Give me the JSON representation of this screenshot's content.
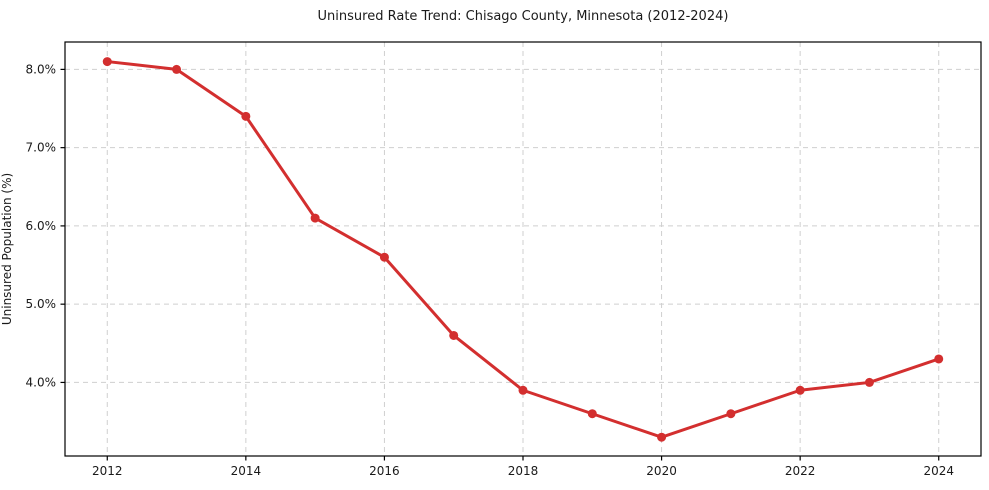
{
  "chart_data": {
    "type": "line",
    "title": "Uninsured Rate Trend: Chisago County, Minnesota (2012-2024)",
    "xlabel": "",
    "ylabel": "Uninsured Population (%)",
    "x": [
      2012,
      2013,
      2014,
      2015,
      2016,
      2017,
      2018,
      2019,
      2020,
      2021,
      2022,
      2023,
      2024
    ],
    "values": [
      8.1,
      8.0,
      7.4,
      6.1,
      5.6,
      4.6,
      3.9,
      3.6,
      3.3,
      3.6,
      3.9,
      4.0,
      4.3
    ],
    "xlim": [
      2011.39,
      2024.61
    ],
    "ylim": [
      3.06,
      8.35
    ],
    "xticks": [
      2012,
      2014,
      2016,
      2018,
      2020,
      2022,
      2024
    ],
    "xtick_labels": [
      "2012",
      "2014",
      "2016",
      "2018",
      "2020",
      "2022",
      "2024"
    ],
    "yticks": [
      4.0,
      5.0,
      6.0,
      7.0,
      8.0
    ],
    "ytick_labels": [
      "4.0%",
      "5.0%",
      "6.0%",
      "7.0%",
      "8.0%"
    ],
    "grid": true,
    "legend": false,
    "line_color": "#d32f2f",
    "marker": "o",
    "marker_radius": 4.5,
    "line_width": 3,
    "grid_color": "#cfcfcf",
    "spine_color": "#000000",
    "text_color": "#1a1a1a",
    "background_color": "#ffffff"
  }
}
